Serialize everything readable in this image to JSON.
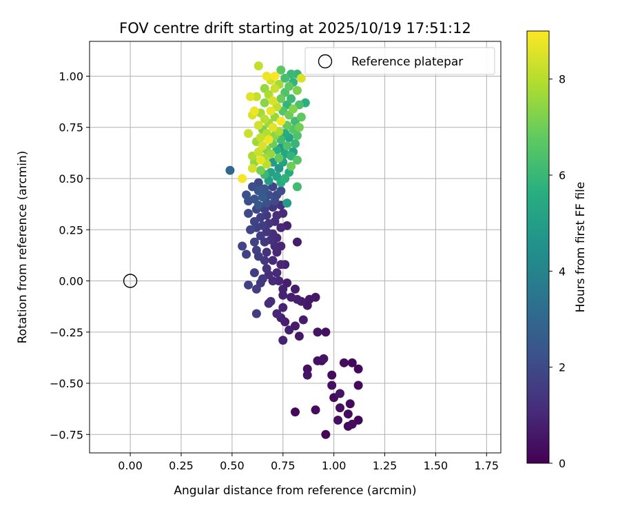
{
  "chart_data": {
    "type": "scatter",
    "title": "FOV centre drift starting at 2025/10/19 17:51:12",
    "xlabel": "Angular distance from reference (arcmin)",
    "ylabel": "Rotation from reference (arcmin)",
    "xlim": [
      -0.2,
      1.82
    ],
    "ylim": [
      -0.84,
      1.17
    ],
    "xticks": [
      0.0,
      0.25,
      0.5,
      0.75,
      1.0,
      1.25,
      1.5,
      1.75
    ],
    "xtick_labels": [
      "0.00",
      "0.25",
      "0.50",
      "0.75",
      "1.00",
      "1.25",
      "1.50",
      "1.75"
    ],
    "yticks": [
      -0.75,
      -0.5,
      -0.25,
      0.0,
      0.25,
      0.5,
      0.75,
      1.0
    ],
    "ytick_labels": [
      "−0.75",
      "−0.50",
      "−0.25",
      "0.00",
      "0.25",
      "0.50",
      "0.75",
      "1.00"
    ],
    "grid": true,
    "legend": {
      "position": "top-right",
      "entries": [
        "Reference platepar"
      ]
    },
    "reference_point": {
      "x": 0.0,
      "y": 0.0,
      "label": "Reference platepar"
    },
    "colorbar": {
      "label": "Hours from first FF file",
      "range": [
        0,
        9
      ],
      "ticks": [
        0,
        2,
        4,
        6,
        8
      ],
      "tick_labels": [
        "0",
        "2",
        "4",
        "6",
        "8"
      ],
      "colormap": "viridis"
    },
    "point_fields": [
      "x",
      "y",
      "hours"
    ],
    "points": [
      [
        0.96,
        -0.75,
        0.1
      ],
      [
        0.81,
        -0.64,
        0.2
      ],
      [
        0.91,
        -0.63,
        0.3
      ],
      [
        1.07,
        -0.71,
        0.2
      ],
      [
        1.09,
        -0.7,
        0.3
      ],
      [
        1.12,
        -0.68,
        0.2
      ],
      [
        1.02,
        -0.68,
        0.4
      ],
      [
        1.07,
        -0.65,
        0.3
      ],
      [
        1.03,
        -0.62,
        0.4
      ],
      [
        1.08,
        -0.6,
        0.2
      ],
      [
        1.0,
        -0.57,
        0.3
      ],
      [
        1.03,
        -0.55,
        0.5
      ],
      [
        1.12,
        -0.51,
        0.2
      ],
      [
        0.99,
        -0.51,
        0.4
      ],
      [
        0.99,
        -0.46,
        0.3
      ],
      [
        0.87,
        -0.46,
        0.5
      ],
      [
        0.87,
        -0.43,
        0.4
      ],
      [
        1.12,
        -0.43,
        0.2
      ],
      [
        1.05,
        -0.4,
        0.3
      ],
      [
        1.09,
        -0.4,
        0.2
      ],
      [
        0.92,
        -0.39,
        0.4
      ],
      [
        0.95,
        -0.38,
        0.5
      ],
      [
        0.94,
        -0.39,
        0.3
      ],
      [
        0.92,
        -0.25,
        0.5
      ],
      [
        0.96,
        -0.25,
        0.4
      ],
      [
        0.83,
        -0.27,
        0.6
      ],
      [
        0.75,
        -0.29,
        0.9
      ],
      [
        0.78,
        -0.24,
        0.8
      ],
      [
        0.81,
        -0.22,
        0.7
      ],
      [
        0.76,
        -0.2,
        0.8
      ],
      [
        0.74,
        -0.18,
        0.9
      ],
      [
        0.85,
        -0.19,
        0.7
      ],
      [
        0.72,
        -0.16,
        1.0
      ],
      [
        0.62,
        -0.16,
        1.6
      ],
      [
        0.75,
        -0.13,
        0.9
      ],
      [
        0.87,
        -0.12,
        0.6
      ],
      [
        0.84,
        -0.1,
        0.7
      ],
      [
        0.88,
        -0.09,
        0.6
      ],
      [
        0.91,
        -0.08,
        0.6
      ],
      [
        0.82,
        -0.09,
        0.8
      ],
      [
        0.79,
        -0.08,
        0.8
      ],
      [
        0.75,
        -0.07,
        0.9
      ],
      [
        0.75,
        -0.04,
        0.9
      ],
      [
        0.68,
        -0.11,
        1.1
      ],
      [
        0.69,
        -0.1,
        1.2
      ],
      [
        0.62,
        -0.04,
        1.6
      ],
      [
        0.58,
        -0.02,
        1.8
      ],
      [
        0.64,
        -0.01,
        1.5
      ],
      [
        0.65,
        0.01,
        1.5
      ],
      [
        0.7,
        0.0,
        1.1
      ],
      [
        0.73,
        0.0,
        1.0
      ],
      [
        0.77,
        -0.01,
        0.8
      ],
      [
        0.81,
        -0.04,
        0.7
      ],
      [
        0.68,
        0.03,
        1.2
      ],
      [
        0.72,
        0.04,
        1.1
      ],
      [
        0.61,
        0.04,
        1.7
      ],
      [
        0.67,
        0.06,
        1.3
      ],
      [
        0.76,
        0.08,
        0.9
      ],
      [
        0.7,
        0.1,
        1.1
      ],
      [
        0.74,
        0.08,
        1.0
      ],
      [
        0.66,
        0.1,
        1.5
      ],
      [
        0.63,
        0.12,
        1.6
      ],
      [
        0.67,
        0.14,
        1.3
      ],
      [
        0.72,
        0.14,
        1.0
      ],
      [
        0.57,
        0.13,
        1.8
      ],
      [
        0.62,
        0.15,
        1.7
      ],
      [
        0.71,
        0.17,
        1.1
      ],
      [
        0.74,
        0.17,
        1.0
      ],
      [
        0.55,
        0.17,
        1.9
      ],
      [
        0.82,
        0.19,
        0.7
      ],
      [
        0.61,
        0.19,
        1.8
      ],
      [
        0.66,
        0.19,
        1.5
      ],
      [
        0.69,
        0.2,
        1.3
      ],
      [
        0.72,
        0.21,
        1.1
      ],
      [
        0.64,
        0.22,
        1.6
      ],
      [
        0.67,
        0.24,
        1.4
      ],
      [
        0.7,
        0.23,
        1.2
      ],
      [
        0.59,
        0.25,
        1.9
      ],
      [
        0.62,
        0.26,
        1.7
      ],
      [
        0.74,
        0.26,
        1.0
      ],
      [
        0.65,
        0.27,
        1.6
      ],
      [
        0.68,
        0.28,
        1.4
      ],
      [
        0.77,
        0.27,
        0.9
      ],
      [
        0.71,
        0.29,
        1.2
      ],
      [
        0.61,
        0.29,
        1.8
      ],
      [
        0.64,
        0.31,
        1.7
      ],
      [
        0.67,
        0.32,
        1.5
      ],
      [
        0.72,
        0.32,
        1.2
      ],
      [
        0.58,
        0.33,
        2.0
      ],
      [
        0.75,
        0.33,
        1.1
      ],
      [
        0.62,
        0.35,
        1.9
      ],
      [
        0.66,
        0.35,
        1.7
      ],
      [
        0.7,
        0.36,
        1.4
      ],
      [
        0.63,
        0.37,
        2.5
      ],
      [
        0.74,
        0.37,
        1.3
      ],
      [
        0.67,
        0.38,
        2.3
      ],
      [
        0.71,
        0.39,
        2.1
      ],
      [
        0.58,
        0.39,
        2.2
      ],
      [
        0.77,
        0.38,
        4.9
      ],
      [
        0.61,
        0.4,
        2.4
      ],
      [
        0.65,
        0.41,
        2.6
      ],
      [
        0.68,
        0.42,
        2.2
      ],
      [
        0.72,
        0.42,
        2.0
      ],
      [
        0.57,
        0.42,
        2.3
      ],
      [
        0.63,
        0.44,
        2.5
      ],
      [
        0.66,
        0.45,
        2.4
      ],
      [
        0.6,
        0.46,
        2.2
      ],
      [
        0.7,
        0.46,
        1.9
      ],
      [
        0.74,
        0.44,
        2.2
      ],
      [
        0.82,
        0.46,
        6.2
      ],
      [
        0.63,
        0.48,
        2.0
      ],
      [
        0.68,
        0.49,
        5.0
      ],
      [
        0.76,
        0.5,
        5.8
      ],
      [
        0.74,
        0.48,
        5.6
      ],
      [
        0.55,
        0.5,
        8.9
      ],
      [
        0.49,
        0.54,
        3.0
      ],
      [
        0.72,
        0.51,
        5.3
      ],
      [
        0.66,
        0.52,
        6.1
      ],
      [
        0.69,
        0.53,
        5.2
      ],
      [
        0.78,
        0.53,
        5.5
      ],
      [
        0.64,
        0.54,
        7.1
      ],
      [
        0.6,
        0.55,
        8.4
      ],
      [
        0.73,
        0.55,
        4.8
      ],
      [
        0.79,
        0.56,
        7.0
      ],
      [
        0.67,
        0.57,
        8.1
      ],
      [
        0.61,
        0.58,
        7.5
      ],
      [
        0.7,
        0.58,
        4.9
      ],
      [
        0.75,
        0.58,
        5.2
      ],
      [
        0.64,
        0.59,
        8.7
      ],
      [
        0.82,
        0.59,
        6.6
      ],
      [
        0.66,
        0.6,
        7.8
      ],
      [
        0.73,
        0.6,
        6.8
      ],
      [
        0.79,
        0.61,
        5.9
      ],
      [
        0.6,
        0.61,
        7.9
      ],
      [
        0.69,
        0.62,
        7.6
      ],
      [
        0.76,
        0.62,
        5.4
      ],
      [
        0.63,
        0.63,
        8.3
      ],
      [
        0.8,
        0.63,
        5.1
      ],
      [
        0.67,
        0.64,
        7.3
      ],
      [
        0.72,
        0.64,
        5.7
      ],
      [
        0.74,
        0.65,
        4.7
      ],
      [
        0.77,
        0.66,
        6.4
      ],
      [
        0.65,
        0.66,
        8.5
      ],
      [
        0.7,
        0.67,
        7.0
      ],
      [
        0.81,
        0.67,
        6.0
      ],
      [
        0.62,
        0.68,
        7.7
      ],
      [
        0.68,
        0.69,
        8.8
      ],
      [
        0.74,
        0.69,
        6.2
      ],
      [
        0.78,
        0.7,
        5.3
      ],
      [
        0.64,
        0.7,
        8.2
      ],
      [
        0.71,
        0.71,
        7.4
      ],
      [
        0.82,
        0.71,
        6.5
      ],
      [
        0.67,
        0.72,
        8.0
      ],
      [
        0.76,
        0.72,
        5.6
      ],
      [
        0.58,
        0.72,
        8.3
      ],
      [
        0.73,
        0.73,
        7.9
      ],
      [
        0.8,
        0.74,
        6.6
      ],
      [
        0.65,
        0.74,
        7.2
      ],
      [
        0.7,
        0.75,
        8.6
      ],
      [
        0.83,
        0.75,
        7.1
      ],
      [
        0.63,
        0.76,
        8.4
      ],
      [
        0.77,
        0.76,
        6.9
      ],
      [
        0.68,
        0.77,
        7.7
      ],
      [
        0.74,
        0.78,
        8.9
      ],
      [
        0.81,
        0.78,
        6.2
      ],
      [
        0.66,
        0.79,
        8.1
      ],
      [
        0.71,
        0.8,
        7.6
      ],
      [
        0.84,
        0.8,
        6.8
      ],
      [
        0.6,
        0.81,
        8.5
      ],
      [
        0.78,
        0.81,
        7.0
      ],
      [
        0.64,
        0.82,
        7.8
      ],
      [
        0.69,
        0.83,
        8.7
      ],
      [
        0.75,
        0.83,
        6.6
      ],
      [
        0.61,
        0.83,
        8.8
      ],
      [
        0.8,
        0.84,
        7.3
      ],
      [
        0.72,
        0.85,
        8.2
      ],
      [
        0.77,
        0.86,
        5.9
      ],
      [
        0.66,
        0.87,
        7.4
      ],
      [
        0.83,
        0.86,
        6.4
      ],
      [
        0.86,
        0.87,
        5.7
      ],
      [
        0.7,
        0.88,
        8.5
      ],
      [
        0.74,
        0.89,
        7.0
      ],
      [
        0.79,
        0.89,
        6.1
      ],
      [
        0.59,
        0.9,
        8.6
      ],
      [
        0.62,
        0.9,
        8.2
      ],
      [
        0.68,
        0.91,
        7.9
      ],
      [
        0.76,
        0.92,
        6.5
      ],
      [
        0.82,
        0.93,
        7.2
      ],
      [
        0.71,
        0.94,
        8.3
      ],
      [
        0.66,
        0.94,
        7.6
      ],
      [
        0.78,
        0.95,
        6.8
      ],
      [
        0.73,
        0.96,
        7.8
      ],
      [
        0.8,
        0.97,
        5.9
      ],
      [
        0.69,
        0.98,
        8.4
      ],
      [
        0.76,
        0.99,
        6.3
      ],
      [
        0.84,
        0.99,
        8.5
      ],
      [
        0.67,
        1.0,
        8.8
      ],
      [
        0.71,
        1.0,
        8.9
      ],
      [
        0.79,
        1.01,
        6.1
      ],
      [
        0.82,
        1.01,
        6.0
      ],
      [
        0.74,
        1.03,
        6.7
      ],
      [
        0.63,
        1.05,
        8.2
      ]
    ]
  }
}
